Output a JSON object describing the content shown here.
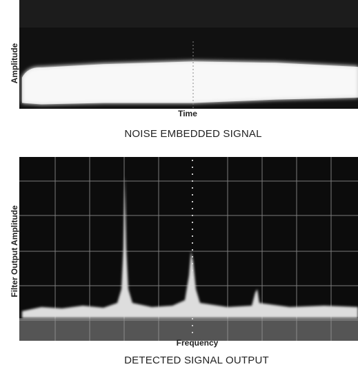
{
  "panels": [
    {
      "y_label": "Amplitude",
      "x_label": "Time",
      "caption": "NOISE EMBEDDED SIGNAL"
    },
    {
      "y_label": "Filter Output Amplitude",
      "x_label": "Frequency",
      "caption": "DETECTED SIGNAL OUTPUT"
    }
  ]
}
